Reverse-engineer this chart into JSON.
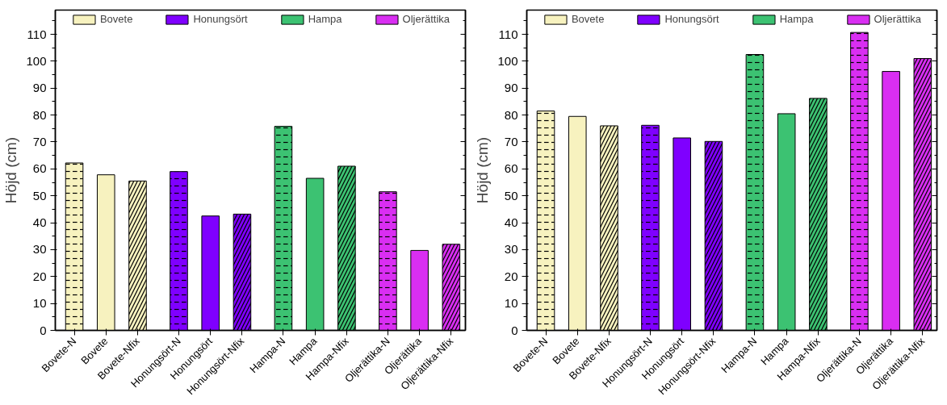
{
  "chart_data": [
    {
      "type": "bar",
      "ylabel": "Höjd (cm)",
      "categories": [
        "Bovete-N",
        "Bovete",
        "Bovete-Nfix",
        "Honungsört-N",
        "Honungsört",
        "Honungsört-Nfix",
        "Hampa-N",
        "Hampa",
        "Hampa-Nfix",
        "Oljerättika-N",
        "Oljerättika",
        "Oljerättika-Nfix"
      ],
      "series": [
        {
          "name": "Bovete",
          "color": "#f7f2bf",
          "values": [
            62.2,
            57.8,
            55.5,
            null,
            null,
            null,
            null,
            null,
            null,
            null,
            null,
            null
          ]
        },
        {
          "name": "Honungsört",
          "color": "#7f00ff",
          "values": [
            null,
            null,
            null,
            59,
            42.5,
            43.2,
            null,
            null,
            null,
            null,
            null,
            null
          ]
        },
        {
          "name": "Hampa",
          "color": "#3cc272",
          "values": [
            null,
            null,
            null,
            null,
            null,
            null,
            75.8,
            56.5,
            61,
            null,
            null,
            null
          ]
        },
        {
          "name": "Oljerättika",
          "color": "#d92ef2",
          "values": [
            null,
            null,
            null,
            null,
            null,
            null,
            null,
            null,
            null,
            51.5,
            29.7,
            32
          ]
        }
      ],
      "ylim": [
        0,
        119
      ],
      "yticks": [
        0,
        10,
        20,
        30,
        40,
        50,
        60,
        70,
        80,
        90,
        100,
        110
      ],
      "legend": "top",
      "grid": false
    },
    {
      "type": "bar",
      "ylabel": "Höjd (cm)",
      "categories": [
        "Bovete-N",
        "Bovete",
        "Bovete-Nfix",
        "Honungsört-N",
        "Honungsört",
        "Honungsört-Nfix",
        "Hampa-N",
        "Hampa",
        "Hampa-Nfix",
        "Oljerättika-N",
        "Oljerättika",
        "Oljerättika-Nfix"
      ],
      "series": [
        {
          "name": "Bovete",
          "color": "#f7f2bf",
          "values": [
            81.5,
            79.5,
            76,
            null,
            null,
            null,
            null,
            null,
            null,
            null,
            null,
            null
          ]
        },
        {
          "name": "Honungsört",
          "color": "#7f00ff",
          "values": [
            null,
            null,
            null,
            76.2,
            71.5,
            70.2,
            null,
            null,
            null,
            null,
            null,
            null
          ]
        },
        {
          "name": "Hampa",
          "color": "#3cc272",
          "values": [
            null,
            null,
            null,
            null,
            null,
            null,
            102.5,
            80.5,
            86.2,
            null,
            null,
            null
          ]
        },
        {
          "name": "Oljerättika",
          "color": "#d92ef2",
          "values": [
            null,
            null,
            null,
            null,
            null,
            null,
            null,
            null,
            null,
            110.7,
            96.2,
            101
          ]
        }
      ],
      "ylim": [
        0,
        119
      ],
      "yticks": [
        0,
        10,
        20,
        30,
        40,
        50,
        60,
        70,
        80,
        90,
        100,
        110
      ],
      "legend": "top",
      "grid": false
    }
  ]
}
